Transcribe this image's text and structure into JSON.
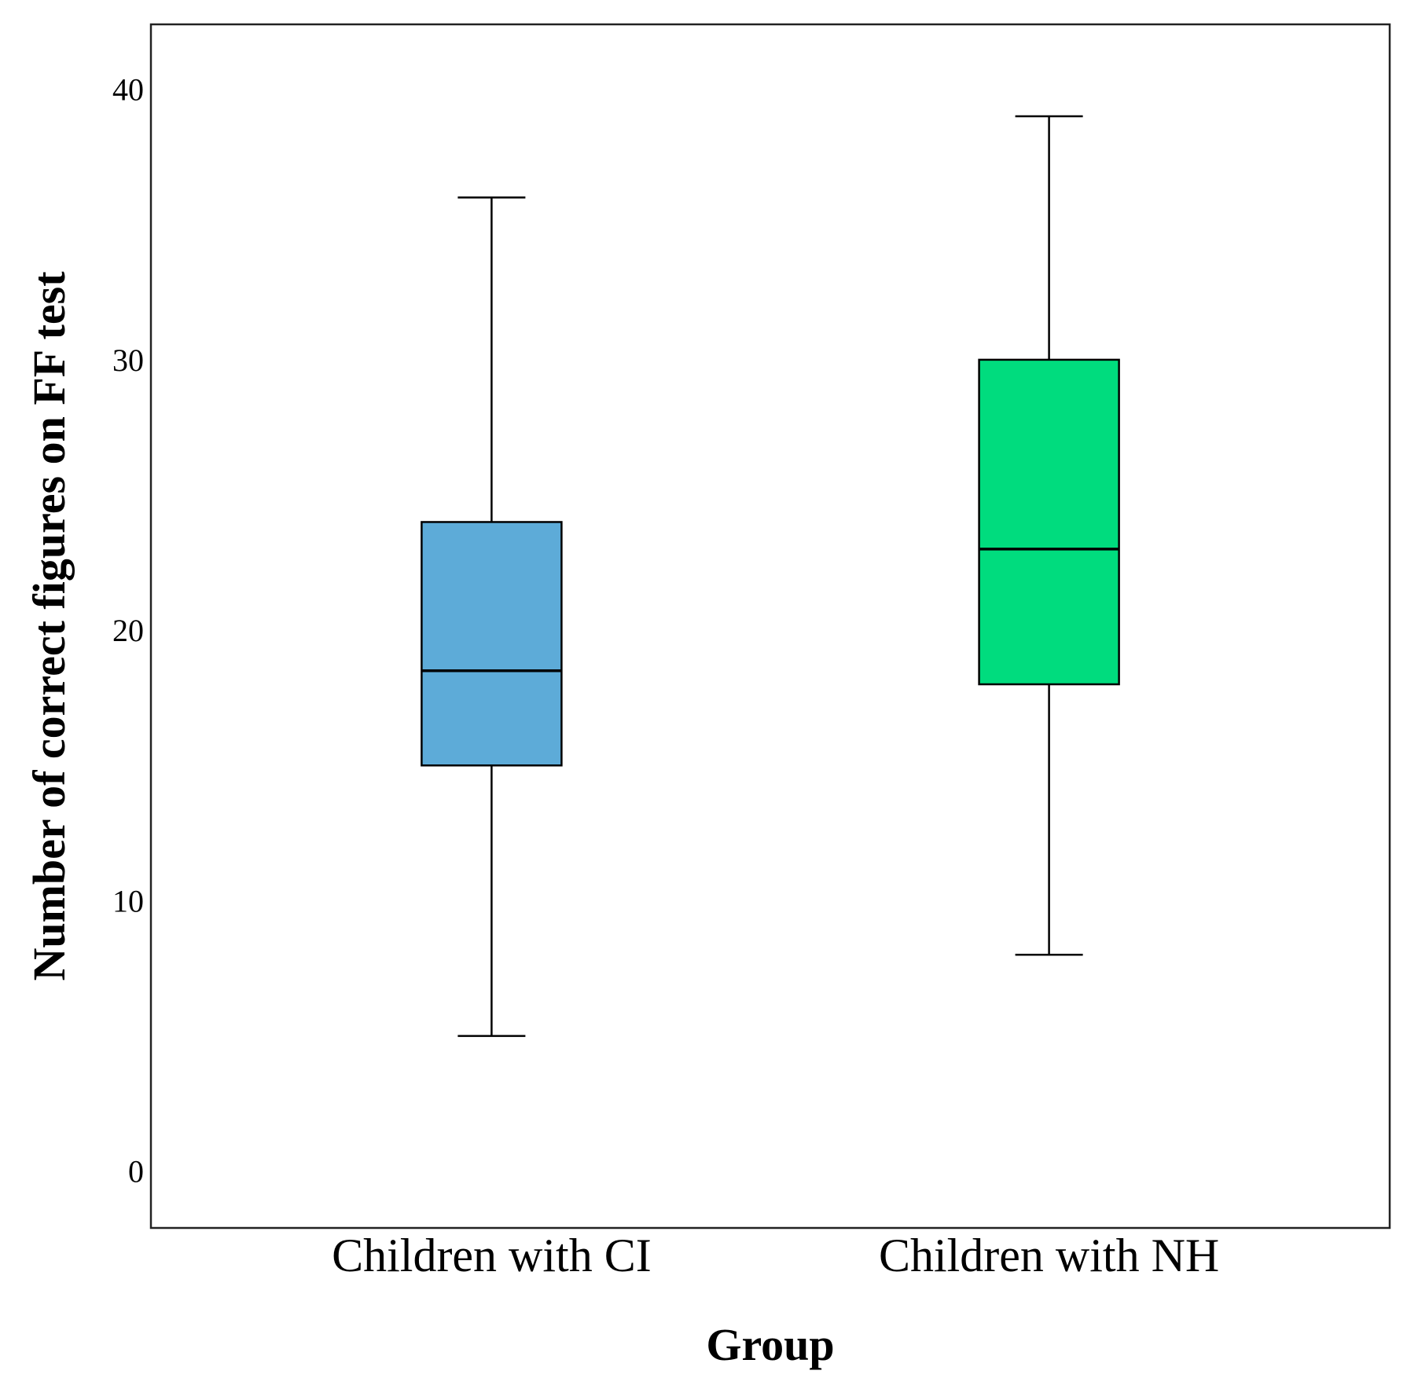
{
  "chart_data": {
    "type": "box",
    "title": "",
    "xlabel": "Group",
    "ylabel": "Number of correct figures on FF test",
    "ylim": [
      -2.1,
      42.4
    ],
    "yticks": [
      0,
      10,
      20,
      30,
      40
    ],
    "ytick_labels": [
      "0",
      "10",
      "20",
      "30",
      "40"
    ],
    "grid": false,
    "categories": [
      "Children with CI",
      "Children with NH"
    ],
    "boxes": [
      {
        "category": "Children with CI",
        "min": 5,
        "q1": 15,
        "median": 18.5,
        "q3": 24,
        "max": 36,
        "color": "#5DABD8"
      },
      {
        "category": "Children with NH",
        "min": 8,
        "q1": 18,
        "median": 23,
        "q3": 30,
        "max": 39,
        "color": "#00DC7E"
      }
    ]
  }
}
